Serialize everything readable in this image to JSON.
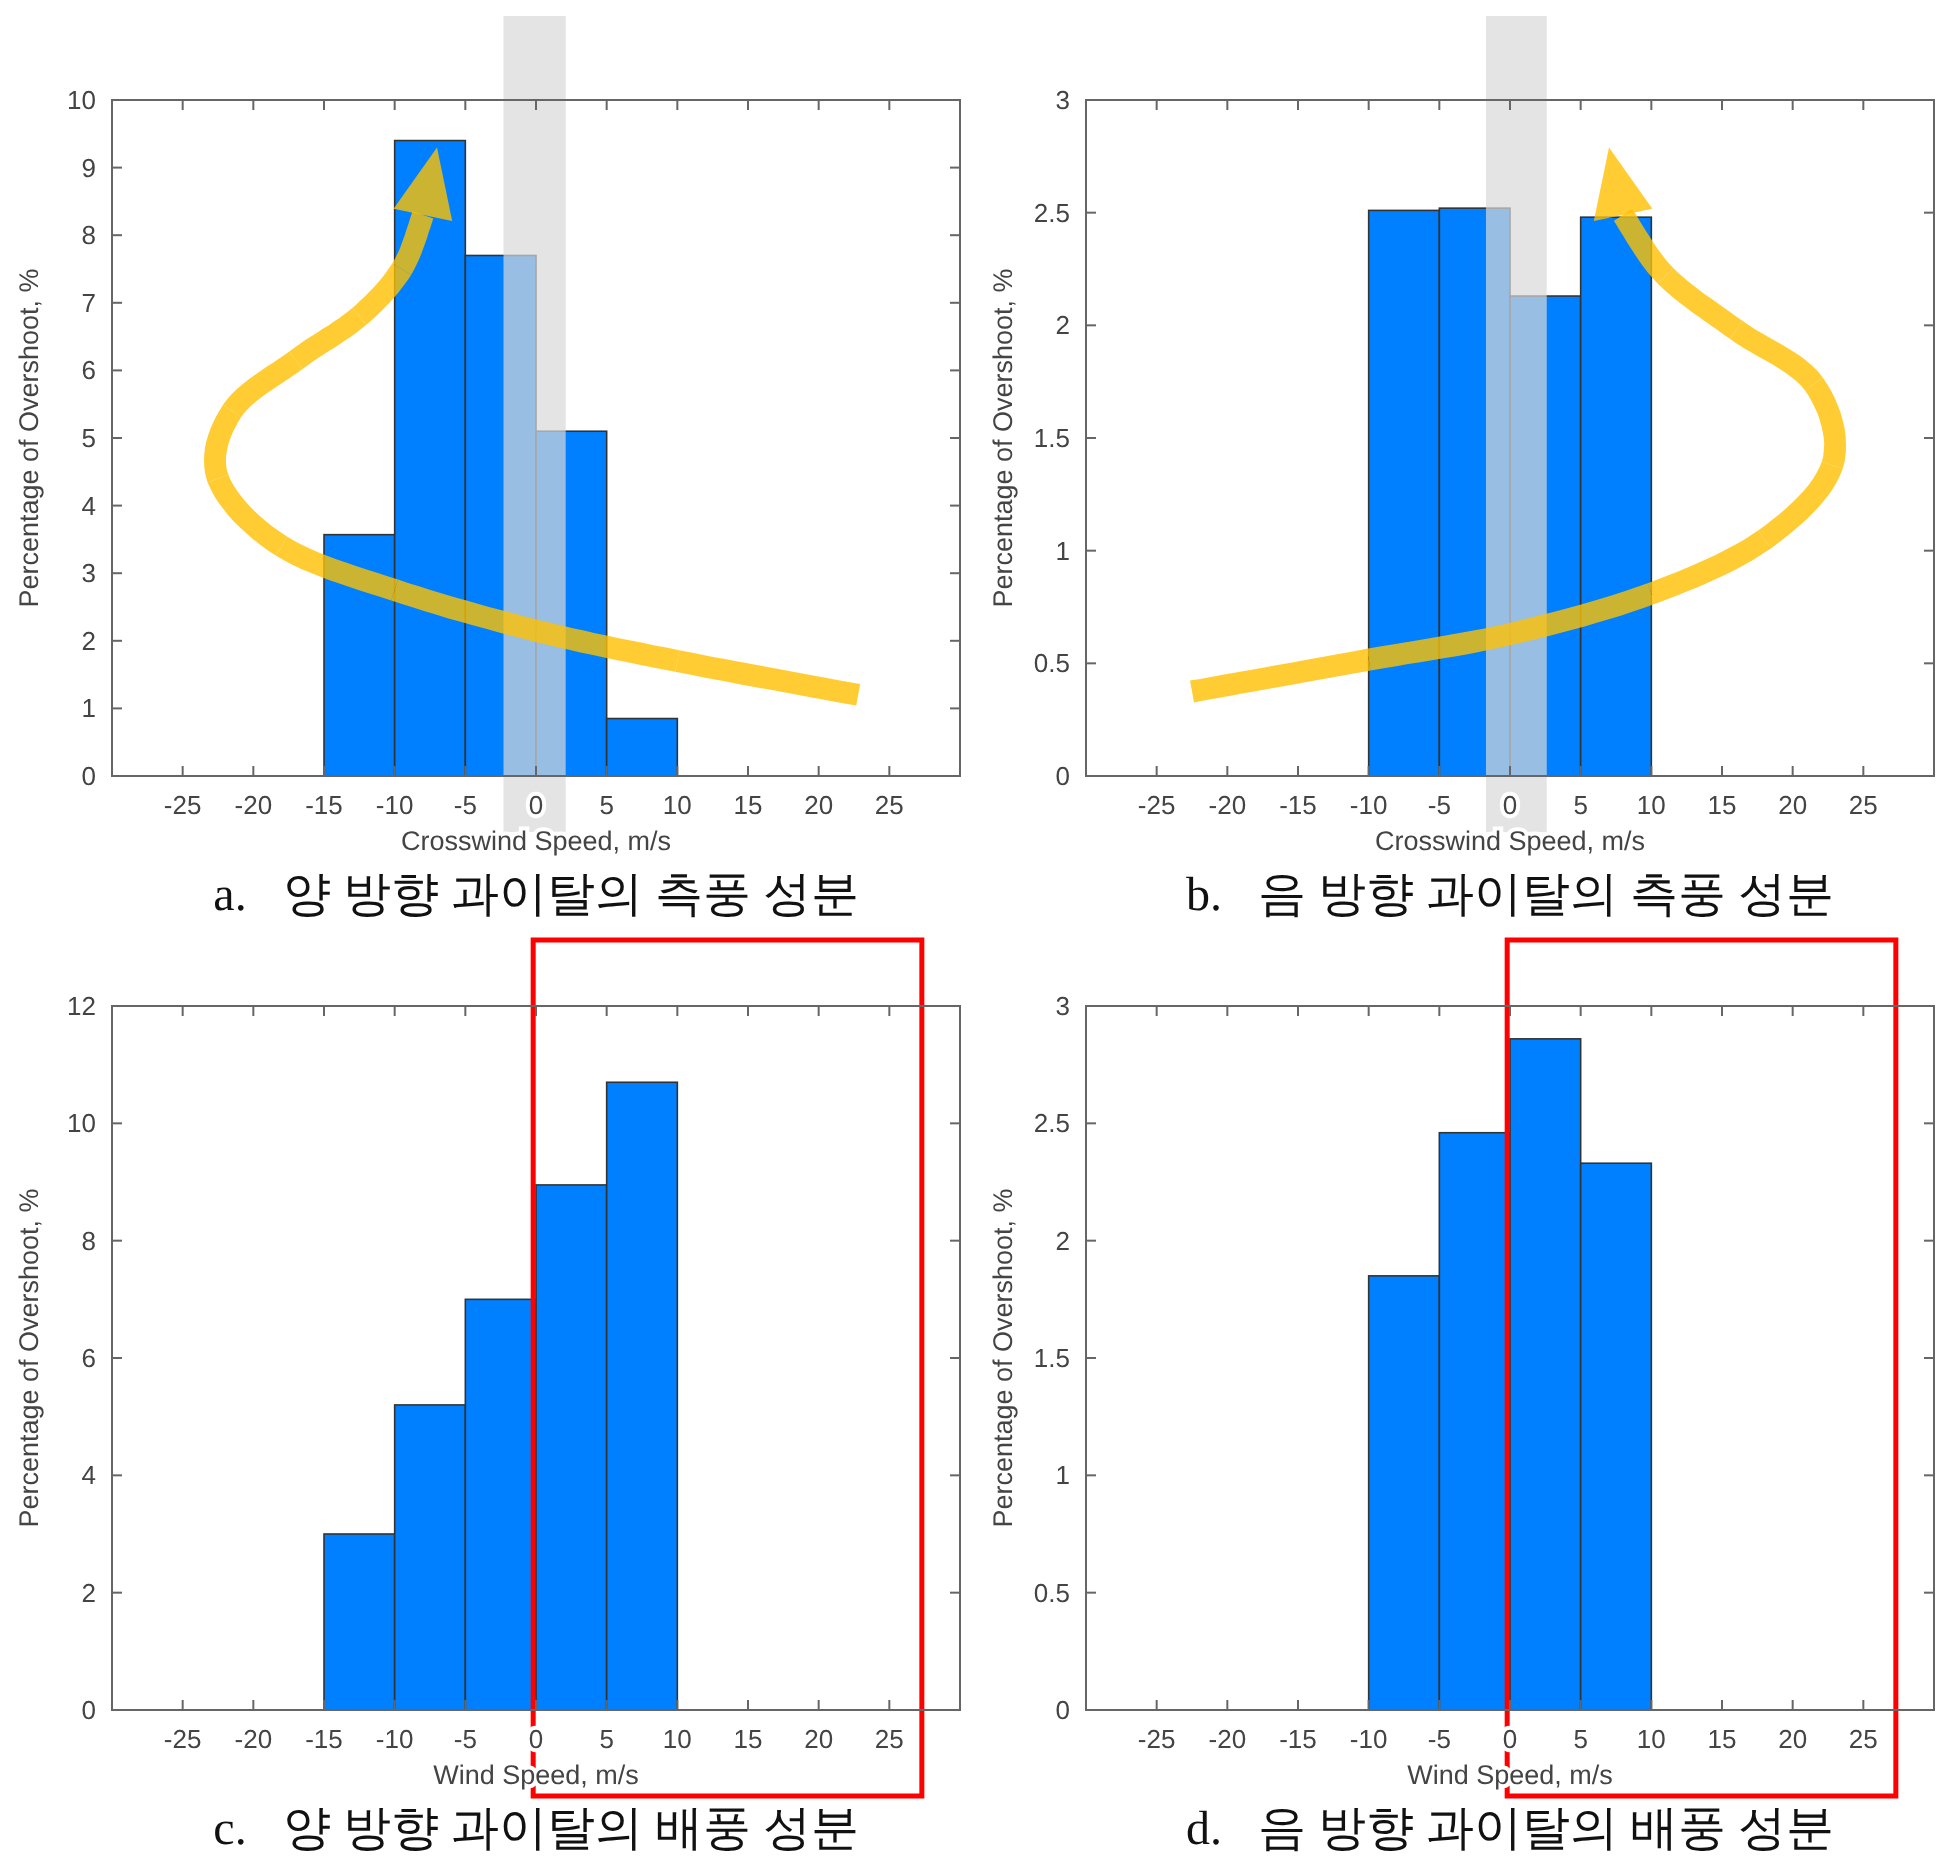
{
  "chart_data": [
    {
      "type": "histogram",
      "title": "a.   양 방향 과이탈의 측풍 성분",
      "xlabel": "Crosswind Speed, m/s",
      "ylabel": "Percentage of Overshoot, %",
      "bins": [
        -15,
        -10,
        -5,
        0,
        5,
        10
      ],
      "values": [
        3.57,
        9.4,
        7.7,
        5.1,
        0.85
      ],
      "color": "#0080ff",
      "xlim": [
        -30,
        30
      ],
      "xticks": [
        -25,
        -20,
        -15,
        -10,
        -5,
        0,
        5,
        10,
        15,
        20,
        25
      ],
      "ylim": [
        0,
        10
      ],
      "yticks": [
        0,
        1,
        2,
        3,
        4,
        5,
        6,
        7,
        8,
        9,
        10
      ],
      "bands": [
        {
          "axis": "x",
          "from": -2.3,
          "to": 2.1,
          "color": "#d9d9d9"
        }
      ]
    },
    {
      "type": "histogram",
      "title": "b.   음 방향 과이탈의 측풍 성분",
      "xlabel": "Crosswind Speed, m/s",
      "ylabel": "Percentage of Overshoot, %",
      "bins": [
        -10,
        -5,
        0,
        5,
        10
      ],
      "values": [
        2.51,
        2.52,
        2.13,
        2.48
      ],
      "color": "#0080ff",
      "xlim": [
        -30,
        30
      ],
      "xticks": [
        -25,
        -20,
        -15,
        -10,
        -5,
        0,
        5,
        10,
        15,
        20,
        25
      ],
      "ylim": [
        0,
        3
      ],
      "yticks": [
        0,
        0.5,
        1,
        1.5,
        2,
        2.5,
        3
      ],
      "bands": [
        {
          "axis": "x",
          "from": -1.7,
          "to": 2.6,
          "color": "#d9d9d9"
        }
      ]
    },
    {
      "type": "histogram",
      "title": "c.   양 방향 과이탈의 배풍 성분",
      "xlabel": "Wind Speed, m/s",
      "ylabel": "Percentage of Overshoot, %",
      "bins": [
        -15,
        -10,
        -5,
        0,
        5,
        10
      ],
      "values": [
        3.0,
        5.2,
        7.0,
        8.95,
        10.7
      ],
      "color": "#0080ff",
      "xlim": [
        -30,
        30
      ],
      "xticks": [
        -25,
        -20,
        -15,
        -10,
        -5,
        0,
        5,
        10,
        15,
        20,
        25
      ],
      "ylim": [
        0,
        12
      ],
      "yticks": [
        0,
        2,
        4,
        6,
        8,
        10,
        12
      ]
    },
    {
      "type": "histogram",
      "title": "d.   음 방향 과이탈의 배풍 성분",
      "xlabel": "Wind Speed, m/s",
      "ylabel": "Percentage of Overshoot, %",
      "bins": [
        -10,
        -5,
        0,
        5,
        10
      ],
      "values": [
        1.85,
        2.46,
        2.86,
        2.33
      ],
      "color": "#0080ff",
      "xlim": [
        -30,
        30
      ],
      "xticks": [
        -25,
        -20,
        -15,
        -10,
        -5,
        0,
        5,
        10,
        15,
        20,
        25
      ],
      "ylim": [
        0,
        3
      ],
      "yticks": [
        0,
        0.5,
        1,
        1.5,
        2,
        2.5,
        3
      ]
    }
  ]
}
